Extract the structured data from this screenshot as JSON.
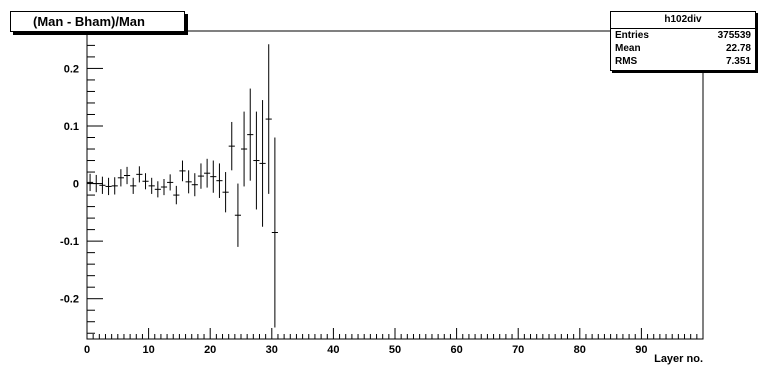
{
  "chart_data": {
    "type": "scatter",
    "title": "(Man - Bham)/Man",
    "xlabel": "Layer no.",
    "ylabel": "",
    "xlim": [
      0,
      100
    ],
    "ylim": [
      -0.27,
      0.265
    ],
    "x_ticks": [
      0,
      10,
      20,
      30,
      40,
      50,
      60,
      70,
      80,
      90
    ],
    "y_ticks": [
      -0.2,
      -0.1,
      0,
      0.1,
      0.2
    ],
    "y_tick_labels": [
      "-0.2",
      "-0.1",
      "0",
      "0.1",
      "0.2"
    ],
    "stats": {
      "name": "h102div",
      "rows": [
        {
          "label": "Entries",
          "value": "375539"
        },
        {
          "label": "Mean",
          "value": "22.78"
        },
        {
          "label": "RMS",
          "value": "7.351"
        }
      ]
    },
    "points": [
      {
        "x": 0.5,
        "y": 0.002,
        "err": 0.015
      },
      {
        "x": 1.5,
        "y": 0.0,
        "err": 0.015
      },
      {
        "x": 2.5,
        "y": -0.003,
        "err": 0.015
      },
      {
        "x": 3.5,
        "y": -0.005,
        "err": 0.015
      },
      {
        "x": 4.5,
        "y": -0.004,
        "err": 0.015
      },
      {
        "x": 5.5,
        "y": 0.01,
        "err": 0.015
      },
      {
        "x": 6.5,
        "y": 0.014,
        "err": 0.015
      },
      {
        "x": 7.5,
        "y": -0.004,
        "err": 0.014
      },
      {
        "x": 8.5,
        "y": 0.016,
        "err": 0.014
      },
      {
        "x": 9.5,
        "y": 0.004,
        "err": 0.014
      },
      {
        "x": 10.5,
        "y": -0.004,
        "err": 0.014
      },
      {
        "x": 11.5,
        "y": -0.01,
        "err": 0.014
      },
      {
        "x": 12.5,
        "y": -0.006,
        "err": 0.014
      },
      {
        "x": 13.5,
        "y": 0.002,
        "err": 0.014
      },
      {
        "x": 14.5,
        "y": -0.02,
        "err": 0.016
      },
      {
        "x": 15.5,
        "y": 0.022,
        "err": 0.018
      },
      {
        "x": 16.5,
        "y": 0.003,
        "err": 0.02
      },
      {
        "x": 17.5,
        "y": -0.002,
        "err": 0.02
      },
      {
        "x": 18.5,
        "y": 0.013,
        "err": 0.022
      },
      {
        "x": 19.5,
        "y": 0.018,
        "err": 0.025
      },
      {
        "x": 20.5,
        "y": 0.012,
        "err": 0.028
      },
      {
        "x": 21.5,
        "y": 0.005,
        "err": 0.03
      },
      {
        "x": 22.5,
        "y": -0.015,
        "err": 0.035
      },
      {
        "x": 23.5,
        "y": 0.065,
        "err": 0.042
      },
      {
        "x": 24.5,
        "y": -0.055,
        "err": 0.055
      },
      {
        "x": 25.5,
        "y": 0.06,
        "err": 0.065
      },
      {
        "x": 26.5,
        "y": 0.085,
        "err": 0.08
      },
      {
        "x": 27.5,
        "y": 0.04,
        "err": 0.085
      },
      {
        "x": 28.5,
        "y": 0.035,
        "err": 0.11
      },
      {
        "x": 29.5,
        "y": 0.112,
        "err": 0.13
      },
      {
        "x": 30.5,
        "y": -0.085,
        "err": 0.165
      }
    ]
  }
}
